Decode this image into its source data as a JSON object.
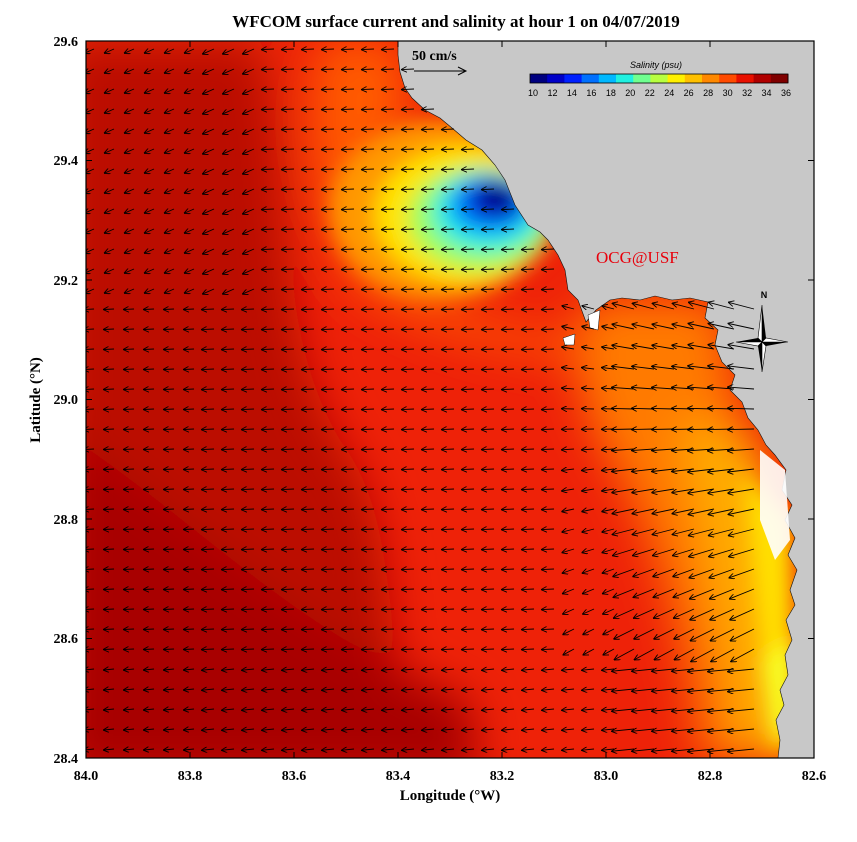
{
  "title": "WFCOM surface current and salinity at hour 1 on 04/07/2019",
  "watermark": "OCG@USF",
  "scale_arrow": {
    "label": "50 cm/s",
    "speed_cm_s": 50
  },
  "compass": {
    "label": "N"
  },
  "colorbar": {
    "title": "Salinity (psu)",
    "ticks": [
      "10",
      "12",
      "14",
      "16",
      "18",
      "20",
      "22",
      "24",
      "26",
      "28",
      "30",
      "32",
      "34",
      "36"
    ],
    "colors": [
      "#00007f",
      "#0000c8",
      "#0020ff",
      "#0070ff",
      "#00b8ff",
      "#20f0e0",
      "#70ff90",
      "#b8ff40",
      "#fff000",
      "#ffc000",
      "#ff8800",
      "#ff4a00",
      "#e81000",
      "#b00000",
      "#7f0000"
    ]
  },
  "map": {
    "x_ticks": [
      "84.0",
      "83.8",
      "83.6",
      "83.4",
      "83.2",
      "83.0",
      "82.8",
      "82.6"
    ],
    "y_ticks": [
      "29.6",
      "29.4",
      "29.2",
      "29.0",
      "28.8",
      "28.6",
      "28.4"
    ],
    "xlabel": "Longitude (°W)",
    "ylabel": "Latitude (°N)",
    "lon_range": [
      84.0,
      82.6
    ],
    "lat_range": [
      28.4,
      29.6
    ],
    "land_color": "#c8c8c8"
  }
}
